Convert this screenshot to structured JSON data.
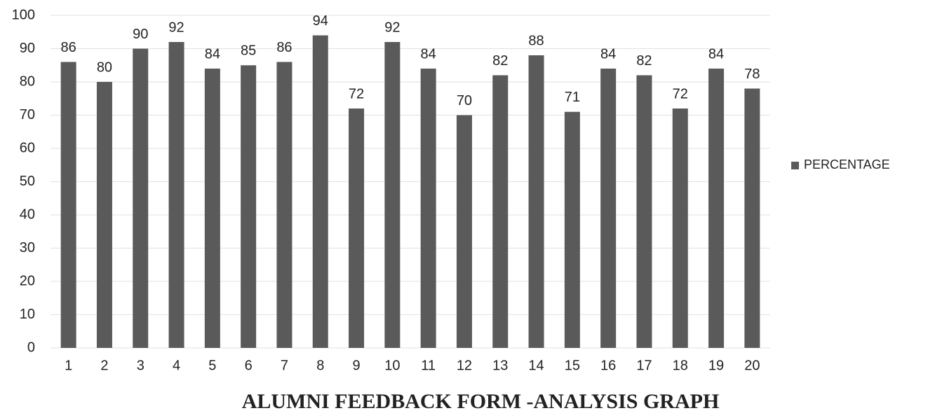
{
  "chart_data": {
    "type": "bar",
    "title": "ALUMNI FEEDBACK FORM -ANALYSIS GRAPH",
    "categories": [
      "1",
      "2",
      "3",
      "4",
      "5",
      "6",
      "7",
      "8",
      "9",
      "10",
      "11",
      "12",
      "13",
      "14",
      "15",
      "16",
      "17",
      "18",
      "19",
      "20"
    ],
    "series": [
      {
        "name": "PERCENTAGE",
        "color": "#5a5a5a",
        "values": [
          86,
          80,
          90,
          92,
          84,
          85,
          86,
          94,
          72,
          92,
          84,
          70,
          82,
          88,
          71,
          84,
          82,
          72,
          84,
          78
        ]
      }
    ],
    "ylim": [
      0,
      100
    ],
    "yticks": [
      0,
      10,
      20,
      30,
      40,
      50,
      60,
      70,
      80,
      90,
      100
    ],
    "grid": true,
    "legend": "right"
  }
}
